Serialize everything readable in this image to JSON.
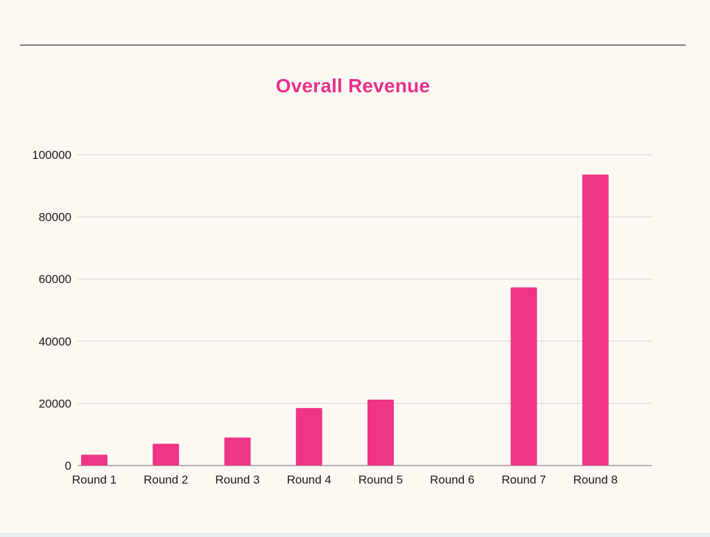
{
  "chart_data": {
    "type": "bar",
    "title": "Overall Revenue",
    "categories": [
      "Round 1",
      "Round 2",
      "Round 3",
      "Round 4",
      "Round 5",
      "Round 6",
      "Round 7",
      "Round 8"
    ],
    "values": [
      3500,
      7000,
      9000,
      18500,
      21200,
      0,
      57300,
      93600
    ],
    "ylim": [
      0,
      100000
    ],
    "yticks": [
      "0",
      "20000",
      "40000",
      "60000",
      "80000",
      "100000"
    ],
    "ytick_values": [
      0,
      20000,
      40000,
      60000,
      80000,
      100000
    ],
    "grid": true,
    "bar_color": "#ee3588",
    "title_color": "#e8308a"
  }
}
